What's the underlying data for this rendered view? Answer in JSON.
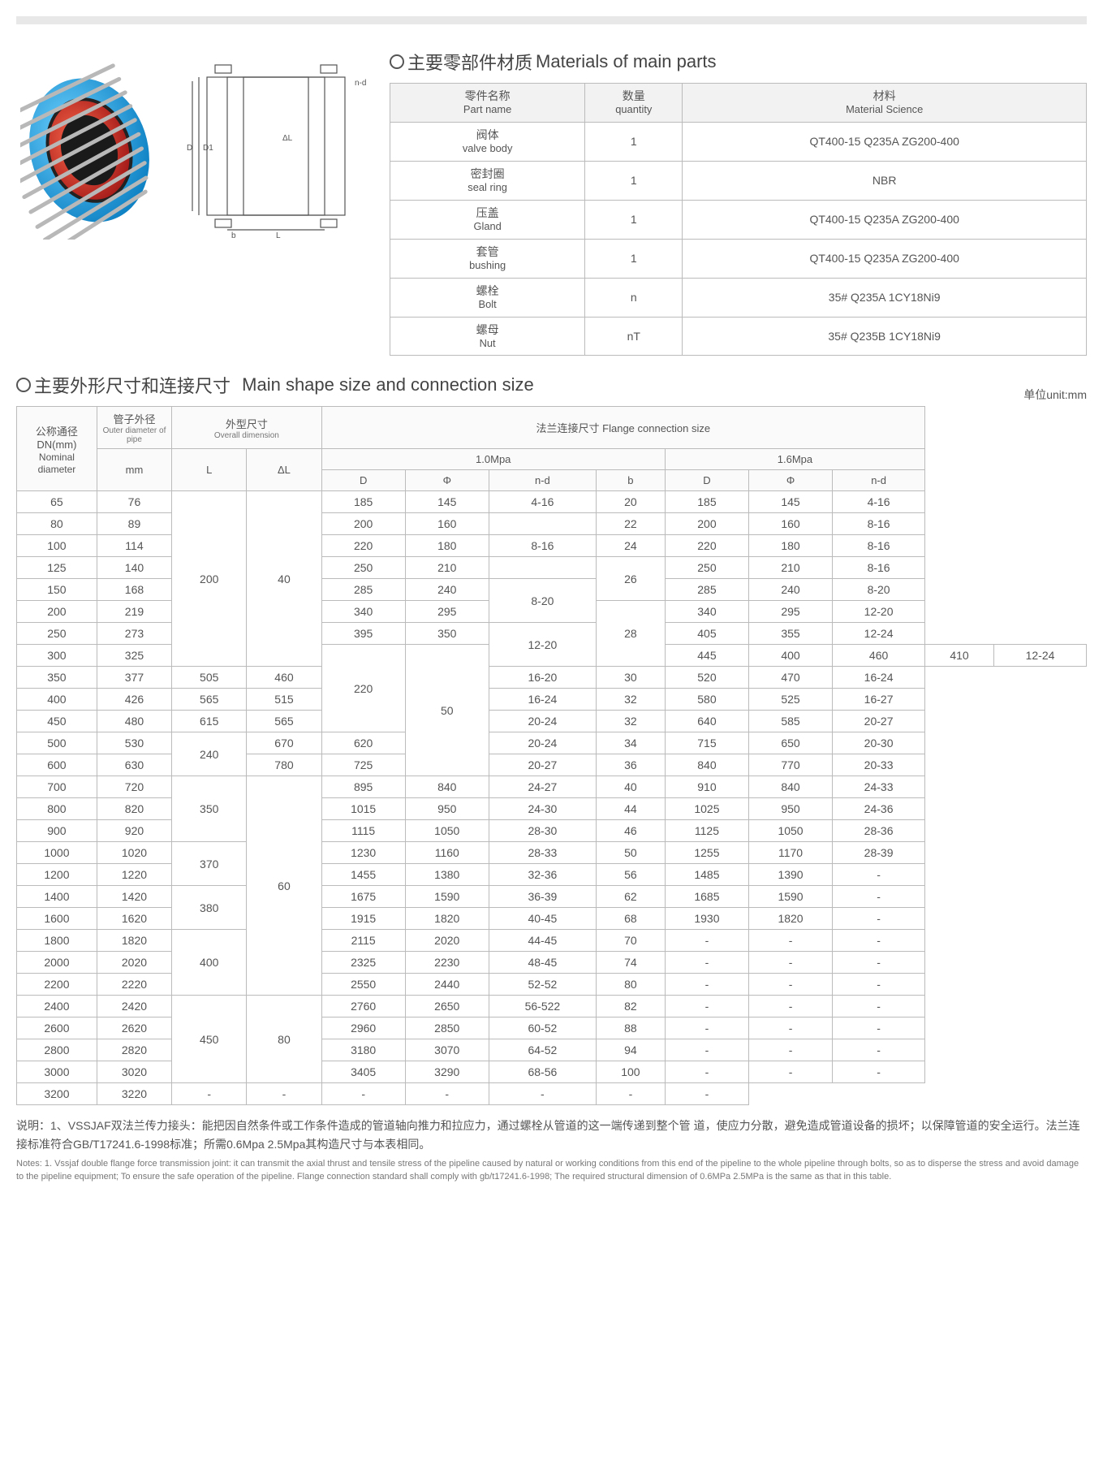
{
  "headings": {
    "materials_cn": "主要零部件材质",
    "materials_en": "Materials of main parts",
    "dimensions_cn": "主要外形尺寸和连接尺寸",
    "dimensions_en": "Main shape size and connection size",
    "unit": "单位unit:mm"
  },
  "materials_table": {
    "headers": {
      "part_cn": "零件名称",
      "part_en": "Part name",
      "qty_cn": "数量",
      "qty_en": "quantity",
      "mat_cn": "材料",
      "mat_en": "Material Science"
    },
    "rows": [
      {
        "cn": "阀体",
        "en": "valve body",
        "qty": "1",
        "mat": "QT400-15 Q235A ZG200-400"
      },
      {
        "cn": "密封圈",
        "en": "seal ring",
        "qty": "1",
        "mat": "NBR"
      },
      {
        "cn": "压盖",
        "en": "Gland",
        "qty": "1",
        "mat": "QT400-15 Q235A ZG200-400"
      },
      {
        "cn": "套管",
        "en": "bushing",
        "qty": "1",
        "mat": "QT400-15 Q235A ZG200-400"
      },
      {
        "cn": "螺栓",
        "en": "Bolt",
        "qty": "n",
        "mat": "35#  Q235A  1CY18Ni9"
      },
      {
        "cn": "螺母",
        "en": "Nut",
        "qty": "nT",
        "mat": "35#  Q235B  1CY18Ni9"
      }
    ]
  },
  "dim_headers": {
    "dn_cn": "公称通径",
    "dn_en": "DN(mm)",
    "dn_en2": "Nominal diameter",
    "od_cn": "管子外径",
    "od_en": "Outer diameter of pipe",
    "od_unit": "mm",
    "overall_cn": "外型尺寸",
    "overall_en": "Overall dimension",
    "L": "L",
    "dL": "ΔL",
    "flange_cn": "法兰连接尺寸",
    "flange_en": "Flange connection size",
    "p10": "1.0Mpa",
    "p16": "1.6Mpa",
    "D": "D",
    "Phi": "Φ",
    "nd": "n-d",
    "b": "b"
  },
  "dim_rows": [
    {
      "dn": "65",
      "od": "76",
      "L": "200",
      "Lrs": 8,
      "dL": "40",
      "dLrs": 8,
      "D1": "185",
      "P1": "145",
      "nd1": "4-16",
      "nd1rs": 1,
      "b": "20",
      "brs": 1,
      "D2": "185",
      "P2": "145",
      "nd2": "4-16"
    },
    {
      "dn": "80",
      "od": "89",
      "D1": "200",
      "P1": "160",
      "nd1": "",
      "nd1rs": 1,
      "b": "22",
      "brs": 1,
      "D2": "200",
      "P2": "160",
      "nd2": "8-16"
    },
    {
      "dn": "100",
      "od": "114",
      "D1": "220",
      "P1": "180",
      "nd1": "8-16",
      "nd1rs": 1,
      "b": "24",
      "brs": 1,
      "D2": "220",
      "P2": "180",
      "nd2": "8-16"
    },
    {
      "dn": "125",
      "od": "140",
      "D1": "250",
      "P1": "210",
      "nd1": "",
      "nd1rs": 1,
      "b": "26",
      "brs": 2,
      "D2": "250",
      "P2": "210",
      "nd2": "8-16"
    },
    {
      "dn": "150",
      "od": "168",
      "D1": "285",
      "P1": "240",
      "nd1": "8-20",
      "nd1rs": 2,
      "D2": "285",
      "P2": "240",
      "nd2": "8-20"
    },
    {
      "dn": "200",
      "od": "219",
      "D1": "340",
      "P1": "295",
      "b": "28",
      "brs": 3,
      "D2": "340",
      "P2": "295",
      "nd2": "12-20"
    },
    {
      "dn": "250",
      "od": "273",
      "D1": "395",
      "P1": "350",
      "nd1": "12-20",
      "nd1rs": 2,
      "D2": "405",
      "P2": "355",
      "nd2": "12-24"
    },
    {
      "dn": "300",
      "od": "325",
      "L": "220",
      "Lrs": 4,
      "dL": "50",
      "dLrs": 6,
      "D1": "445",
      "P1": "400",
      "D2": "460",
      "P2": "410",
      "nd2": "12-24"
    },
    {
      "dn": "350",
      "od": "377",
      "D1": "505",
      "P1": "460",
      "nd1": "16-20",
      "nd1rs": 1,
      "b": "30",
      "brs": 1,
      "D2": "520",
      "P2": "470",
      "nd2": "16-24"
    },
    {
      "dn": "400",
      "od": "426",
      "D1": "565",
      "P1": "515",
      "nd1": "16-24",
      "nd1rs": 1,
      "b": "32",
      "brs": 1,
      "D2": "580",
      "P2": "525",
      "nd2": "16-27"
    },
    {
      "dn": "450",
      "od": "480",
      "D1": "615",
      "P1": "565",
      "nd1": "20-24",
      "nd1rs": 1,
      "b": "32",
      "brs": 1,
      "D2": "640",
      "P2": "585",
      "nd2": "20-27"
    },
    {
      "dn": "500",
      "od": "530",
      "L": "240",
      "Lrs": 2,
      "D1": "670",
      "P1": "620",
      "nd1": "20-24",
      "nd1rs": 1,
      "b": "34",
      "brs": 1,
      "D2": "715",
      "P2": "650",
      "nd2": "20-30"
    },
    {
      "dn": "600",
      "od": "630",
      "D1": "780",
      "P1": "725",
      "nd1": "20-27",
      "nd1rs": 1,
      "b": "36",
      "brs": 1,
      "D2": "840",
      "P2": "770",
      "nd2": "20-33"
    },
    {
      "dn": "700",
      "od": "720",
      "L": "350",
      "Lrs": 3,
      "dL": "60",
      "dLrs": 10,
      "D1": "895",
      "P1": "840",
      "nd1": "24-27",
      "nd1rs": 1,
      "b": "40",
      "brs": 1,
      "D2": "910",
      "P2": "840",
      "nd2": "24-33"
    },
    {
      "dn": "800",
      "od": "820",
      "D1": "1015",
      "P1": "950",
      "nd1": "24-30",
      "nd1rs": 1,
      "b": "44",
      "brs": 1,
      "D2": "1025",
      "P2": "950",
      "nd2": "24-36"
    },
    {
      "dn": "900",
      "od": "920",
      "D1": "1115",
      "P1": "1050",
      "nd1": "28-30",
      "nd1rs": 1,
      "b": "46",
      "brs": 1,
      "D2": "1125",
      "P2": "1050",
      "nd2": "28-36"
    },
    {
      "dn": "1000",
      "od": "1020",
      "L": "370",
      "Lrs": 2,
      "D1": "1230",
      "P1": "1160",
      "nd1": "28-33",
      "nd1rs": 1,
      "b": "50",
      "brs": 1,
      "D2": "1255",
      "P2": "1170",
      "nd2": "28-39"
    },
    {
      "dn": "1200",
      "od": "1220",
      "D1": "1455",
      "P1": "1380",
      "nd1": "32-36",
      "nd1rs": 1,
      "b": "56",
      "brs": 1,
      "D2": "1485",
      "P2": "1390",
      "nd2": "-"
    },
    {
      "dn": "1400",
      "od": "1420",
      "L": "380",
      "Lrs": 2,
      "D1": "1675",
      "P1": "1590",
      "nd1": "36-39",
      "nd1rs": 1,
      "b": "62",
      "brs": 1,
      "D2": "1685",
      "P2": "1590",
      "nd2": "-"
    },
    {
      "dn": "1600",
      "od": "1620",
      "D1": "1915",
      "P1": "1820",
      "nd1": "40-45",
      "nd1rs": 1,
      "b": "68",
      "brs": 1,
      "D2": "1930",
      "P2": "1820",
      "nd2": "-"
    },
    {
      "dn": "1800",
      "od": "1820",
      "L": "400",
      "Lrs": 3,
      "D1": "2115",
      "P1": "2020",
      "nd1": "44-45",
      "nd1rs": 1,
      "b": "70",
      "brs": 1,
      "D2": "-",
      "P2": "-",
      "nd2": "-"
    },
    {
      "dn": "2000",
      "od": "2020",
      "D1": "2325",
      "P1": "2230",
      "nd1": "48-45",
      "nd1rs": 1,
      "b": "74",
      "brs": 1,
      "D2": "-",
      "P2": "-",
      "nd2": "-"
    },
    {
      "dn": "2200",
      "od": "2220",
      "D1": "2550",
      "P1": "2440",
      "nd1": "52-52",
      "nd1rs": 1,
      "b": "80",
      "brs": 1,
      "D2": "-",
      "P2": "-",
      "nd2": "-"
    },
    {
      "dn": "2400",
      "od": "2420",
      "L": "450",
      "Lrs": 4,
      "dL": "80",
      "dLrs": 4,
      "D1": "2760",
      "P1": "2650",
      "nd1": "56-522",
      "nd1rs": 1,
      "b": "82",
      "brs": 1,
      "D2": "-",
      "P2": "-",
      "nd2": "-"
    },
    {
      "dn": "2600",
      "od": "2620",
      "D1": "2960",
      "P1": "2850",
      "nd1": "60-52",
      "nd1rs": 1,
      "b": "88",
      "brs": 1,
      "D2": "-",
      "P2": "-",
      "nd2": "-"
    },
    {
      "dn": "2800",
      "od": "2820",
      "D1": "3180",
      "P1": "3070",
      "nd1": "64-52",
      "nd1rs": 1,
      "b": "94",
      "brs": 1,
      "D2": "-",
      "P2": "-",
      "nd2": "-"
    },
    {
      "dn": "3000",
      "od": "3020",
      "D1": "3405",
      "P1": "3290",
      "nd1": "68-56",
      "nd1rs": 1,
      "b": "100",
      "brs": 1,
      "D2": "-",
      "P2": "-",
      "nd2": "-"
    },
    {
      "dn": "3200",
      "od": "3220",
      "D1": "-",
      "P1": "-",
      "nd1": "-",
      "nd1rs": 1,
      "b": "-",
      "brs": 1,
      "D2": "-",
      "P2": "-",
      "nd2": "-"
    }
  ],
  "notes": {
    "cn": "说明：1、VSSJAF双法兰传力接头：能把因自然条件或工作条件造成的管道轴向推力和拉应力，通过螺栓从管道的这一端传递到整个管 道，使应力分散，避免造成管道设备的损坏；以保障管道的安全运行。法兰连接标准符合GB/T17241.6-1998标准；所需0.6Mpa 2.5Mpa其构造尺寸与本表相同。",
    "en": "Notes: 1. Vssjaf double flange force transmission joint: it can transmit the axial thrust and tensile stress of the pipeline caused by natural or working conditions from this end of the pipeline to the whole pipeline through bolts, so as to disperse the stress and avoid damage to the pipeline equipment; To ensure the safe operation of the pipeline. Flange connection standard shall comply with gb/t17241.6-1998; The required structural dimension of 0.6MPa 2.5MPa is the same as that in this table."
  },
  "colors": {
    "flange_blue": "#17a8e8",
    "flange_red": "#c51f1f",
    "bolt_grey": "#b8b8b8",
    "border": "#bbbbbb",
    "text": "#555555"
  }
}
